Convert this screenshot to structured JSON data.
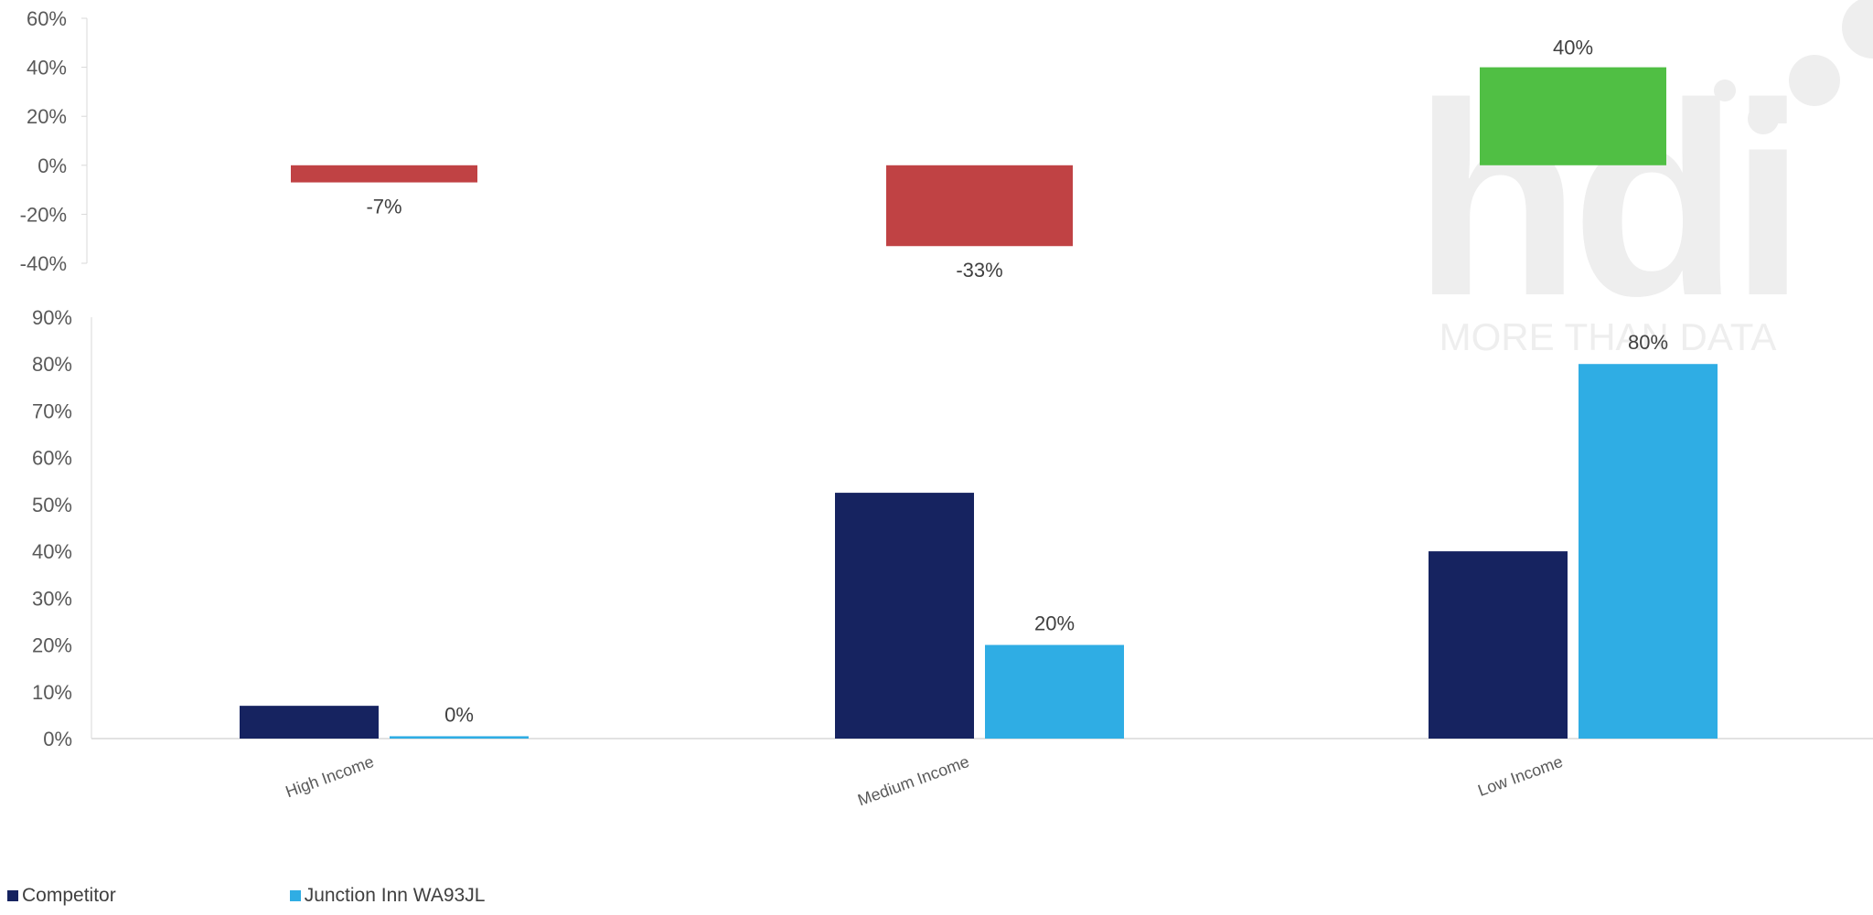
{
  "colors": {
    "competitor": "#162360",
    "property": "#2fade4",
    "negative": "#c04244",
    "positive": "#50bf44",
    "axis_text": "#595959",
    "label_text": "#404040",
    "axis_line": "#d9d9d9",
    "watermark": "#eeeeee"
  },
  "watermark": {
    "logo": "hdi",
    "tagline": "MORE THAN DATA"
  },
  "chart_data": [
    {
      "type": "bar",
      "categories": [
        "High Income",
        "Medium Income",
        "Low Income"
      ],
      "series": [
        {
          "values": [
            -7,
            -33,
            40
          ],
          "value_labels": [
            "-7%",
            "-33%",
            "40%"
          ]
        }
      ],
      "ylim": [
        -40,
        60
      ],
      "yticks": [
        "60%",
        "40%",
        "20%",
        "0%",
        "-20%",
        "-40%"
      ],
      "ytick_values": [
        60,
        40,
        20,
        0,
        -20,
        -40
      ],
      "title": "",
      "xlabel": "",
      "ylabel": "",
      "grid": false
    },
    {
      "type": "bar",
      "categories": [
        "High Income",
        "Medium Income",
        "Low Income"
      ],
      "series": [
        {
          "name": "Competitor",
          "values": [
            7,
            52.5,
            40
          ],
          "value_labels": [
            "",
            "",
            ""
          ]
        },
        {
          "name": "Junction Inn WA93JL",
          "values": [
            0.5,
            20,
            80
          ],
          "value_labels": [
            "0%",
            "20%",
            "80%"
          ]
        }
      ],
      "ylim": [
        0,
        90
      ],
      "yticks": [
        "90%",
        "80%",
        "70%",
        "60%",
        "50%",
        "40%",
        "30%",
        "20%",
        "10%",
        "0%"
      ],
      "ytick_values": [
        90,
        80,
        70,
        60,
        50,
        40,
        30,
        20,
        10,
        0
      ],
      "title": "",
      "xlabel": "",
      "ylabel": "",
      "grid": false,
      "legend": "bottom-left"
    }
  ]
}
